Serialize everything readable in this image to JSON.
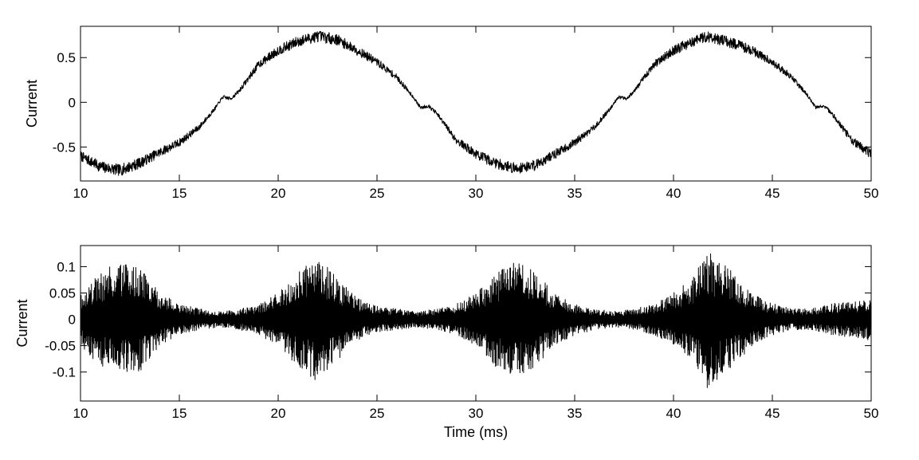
{
  "chart_data": [
    {
      "type": "line",
      "title": "",
      "xlabel": "",
      "ylabel": "Current",
      "xlim": [
        10,
        50
      ],
      "ylim": [
        -0.88,
        0.85
      ],
      "xticks": [
        10,
        15,
        20,
        25,
        30,
        35,
        40,
        45,
        50
      ],
      "xtick_labels": [
        "10",
        "15",
        "20",
        "25",
        "30",
        "35",
        "40",
        "45",
        "50"
      ],
      "yticks": [
        -0.5,
        0,
        0.5
      ],
      "ytick_labels": [
        "-0.5",
        "0",
        "0.5"
      ],
      "grid": false,
      "series": [
        {
          "x": [
            10,
            11,
            12,
            13,
            14,
            15,
            16,
            16.8,
            17.2,
            17.6,
            18,
            19,
            20,
            21,
            22,
            23,
            24,
            25,
            26,
            26.8,
            27.2,
            27.6,
            28,
            29,
            30,
            31,
            32,
            33,
            34,
            35,
            36,
            36.8,
            37.2,
            37.6,
            38,
            39,
            40,
            41,
            41.7,
            43,
            44,
            45,
            46,
            46.8,
            47.2,
            47.6,
            48,
            49,
            50
          ],
          "y": [
            -0.6,
            -0.72,
            -0.76,
            -0.68,
            -0.56,
            -0.45,
            -0.28,
            -0.07,
            0.06,
            0.04,
            0.12,
            0.42,
            0.58,
            0.68,
            0.74,
            0.7,
            0.58,
            0.45,
            0.28,
            0.07,
            -0.06,
            -0.04,
            -0.12,
            -0.42,
            -0.58,
            -0.68,
            -0.74,
            -0.7,
            -0.58,
            -0.45,
            -0.28,
            -0.07,
            0.06,
            0.04,
            0.12,
            0.42,
            0.58,
            0.68,
            0.74,
            0.66,
            0.58,
            0.45,
            0.28,
            0.07,
            -0.06,
            -0.04,
            -0.12,
            -0.42,
            -0.58
          ]
        }
      ]
    },
    {
      "type": "line",
      "title": "",
      "xlabel": "Time (ms)",
      "ylabel": "Current",
      "xlim": [
        10,
        50
      ],
      "ylim": [
        -0.155,
        0.14
      ],
      "xticks": [
        10,
        15,
        20,
        25,
        30,
        35,
        40,
        45,
        50
      ],
      "xtick_labels": [
        "10",
        "15",
        "20",
        "25",
        "30",
        "35",
        "40",
        "45",
        "50"
      ],
      "yticks": [
        -0.1,
        -0.05,
        0,
        0.05,
        0.1
      ],
      "ytick_labels": [
        "-0.1",
        "-0.05",
        "0",
        "0.05",
        "0.1"
      ],
      "grid": false,
      "series": [
        {
          "x": [
            10,
            11,
            12,
            13,
            14,
            15,
            16,
            17,
            18,
            19,
            20,
            21,
            22,
            23,
            24,
            25,
            26,
            27,
            28,
            29,
            30,
            31,
            32,
            33,
            34,
            35,
            36,
            37,
            38,
            39,
            40,
            41,
            41.7,
            43,
            44,
            45,
            46,
            47,
            48,
            49,
            50
          ],
          "y": [
            0.05,
            0.09,
            0.11,
            0.1,
            0.05,
            0.03,
            0.02,
            0.015,
            0.02,
            0.03,
            0.05,
            0.09,
            0.12,
            0.08,
            0.04,
            0.025,
            0.02,
            0.015,
            0.02,
            0.03,
            0.05,
            0.09,
            0.11,
            0.09,
            0.05,
            0.03,
            0.02,
            0.015,
            0.02,
            0.03,
            0.05,
            0.08,
            0.13,
            0.09,
            0.05,
            0.03,
            0.02,
            0.02,
            0.03,
            0.035,
            0.04
          ]
        }
      ]
    }
  ]
}
